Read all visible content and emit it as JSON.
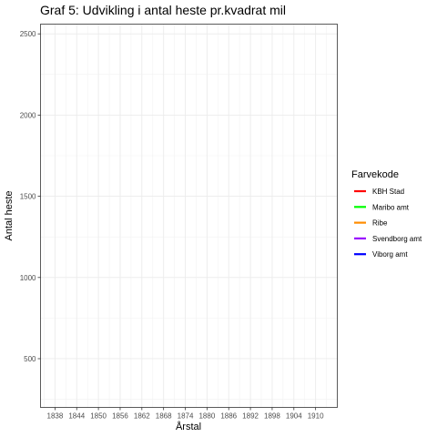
{
  "chart_data": {
    "type": "line",
    "title": "Graf 5: Udvikling i antal heste pr.kvadrat mil",
    "xlabel": "Årstal",
    "ylabel": "Antal heste",
    "xlim": [
      1834,
      1916
    ],
    "ylim": [
      200,
      2560
    ],
    "x_ticks": [
      "1838",
      "1844",
      "1850",
      "1856",
      "1862",
      "1868",
      "1874",
      "1880",
      "1886",
      "1892",
      "1898",
      "1904",
      "1910"
    ],
    "y_ticks": [
      500,
      1000,
      1500,
      2000,
      2500
    ],
    "grid": true,
    "legend": {
      "title": "Farvekode",
      "placement": "right"
    },
    "series": [
      {
        "name": "KBH Stad",
        "color": "#ff0000",
        "values": []
      },
      {
        "name": "Maribo amt",
        "color": "#00ff00",
        "values": []
      },
      {
        "name": "Ribe",
        "color": "#ff8c00",
        "values": []
      },
      {
        "name": "Svendborg amt",
        "color": "#9900ff",
        "values": []
      },
      {
        "name": "Viborg amt",
        "color": "#0000ff",
        "values": []
      }
    ]
  }
}
